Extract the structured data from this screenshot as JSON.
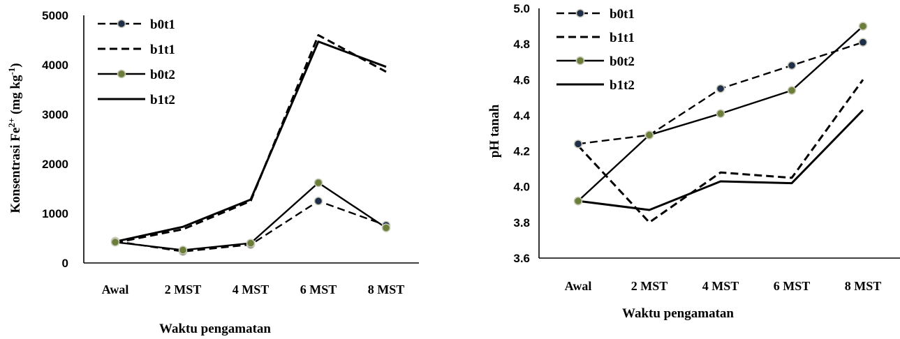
{
  "colors": {
    "line": "#000000",
    "marker_b0t1": "#1f2f4a",
    "marker_b0t2": "#6b7f3a",
    "background": "#ffffff"
  },
  "chart_data": [
    {
      "type": "line",
      "ylabel_main": "Konsentrasi Fe",
      "ylabel_sup1": "2+",
      "ylabel_mid": " (mg kg",
      "ylabel_sup2": "-1",
      "ylabel_end": ")",
      "xlabel": "Waktu pengamatan",
      "categories": [
        "Awal",
        "2 MST",
        "4 MST",
        "6 MST",
        "8 MST"
      ],
      "ylim": [
        0,
        5000
      ],
      "yticks": [
        "0",
        "1000",
        "2000",
        "3000",
        "4000",
        "5000"
      ],
      "legend_position": "top-left",
      "series": [
        {
          "name": "b0t1",
          "style": "dashed",
          "marker": "b0t1",
          "values": [
            440,
            230,
            370,
            1250,
            760
          ]
        },
        {
          "name": "b1t1",
          "style": "dashed",
          "marker": "none",
          "values": [
            410,
            680,
            1250,
            4600,
            3860
          ]
        },
        {
          "name": "b0t2",
          "style": "solid",
          "marker": "b0t2",
          "values": [
            420,
            260,
            400,
            1620,
            710
          ]
        },
        {
          "name": "b1t2",
          "style": "solid",
          "marker": "none",
          "values": [
            430,
            730,
            1280,
            4470,
            3960
          ]
        }
      ]
    },
    {
      "type": "line",
      "ylabel": "pH tanah",
      "xlabel": "Waktu pengamatan",
      "categories": [
        "Awal",
        "2 MST",
        "4 MST",
        "6 MST",
        "8 MST"
      ],
      "ylim": [
        3.6,
        5.0
      ],
      "yticks": [
        "3.6",
        "3.8",
        "4.0",
        "4.2",
        "4.4",
        "4.6",
        "4.8",
        "5.0"
      ],
      "legend_position": "top-left",
      "series": [
        {
          "name": "b0t1",
          "style": "dashed",
          "marker": "b0t1",
          "values": [
            4.24,
            4.29,
            4.55,
            4.68,
            4.81
          ]
        },
        {
          "name": "b1t1",
          "style": "dashed",
          "marker": "none",
          "values": [
            4.23,
            3.8,
            4.08,
            4.05,
            4.6
          ]
        },
        {
          "name": "b0t2",
          "style": "solid",
          "marker": "b0t2",
          "values": [
            3.92,
            4.29,
            4.41,
            4.54,
            4.9
          ]
        },
        {
          "name": "b1t2",
          "style": "solid",
          "marker": "none",
          "values": [
            3.92,
            3.87,
            4.03,
            4.02,
            4.43
          ]
        }
      ]
    }
  ]
}
